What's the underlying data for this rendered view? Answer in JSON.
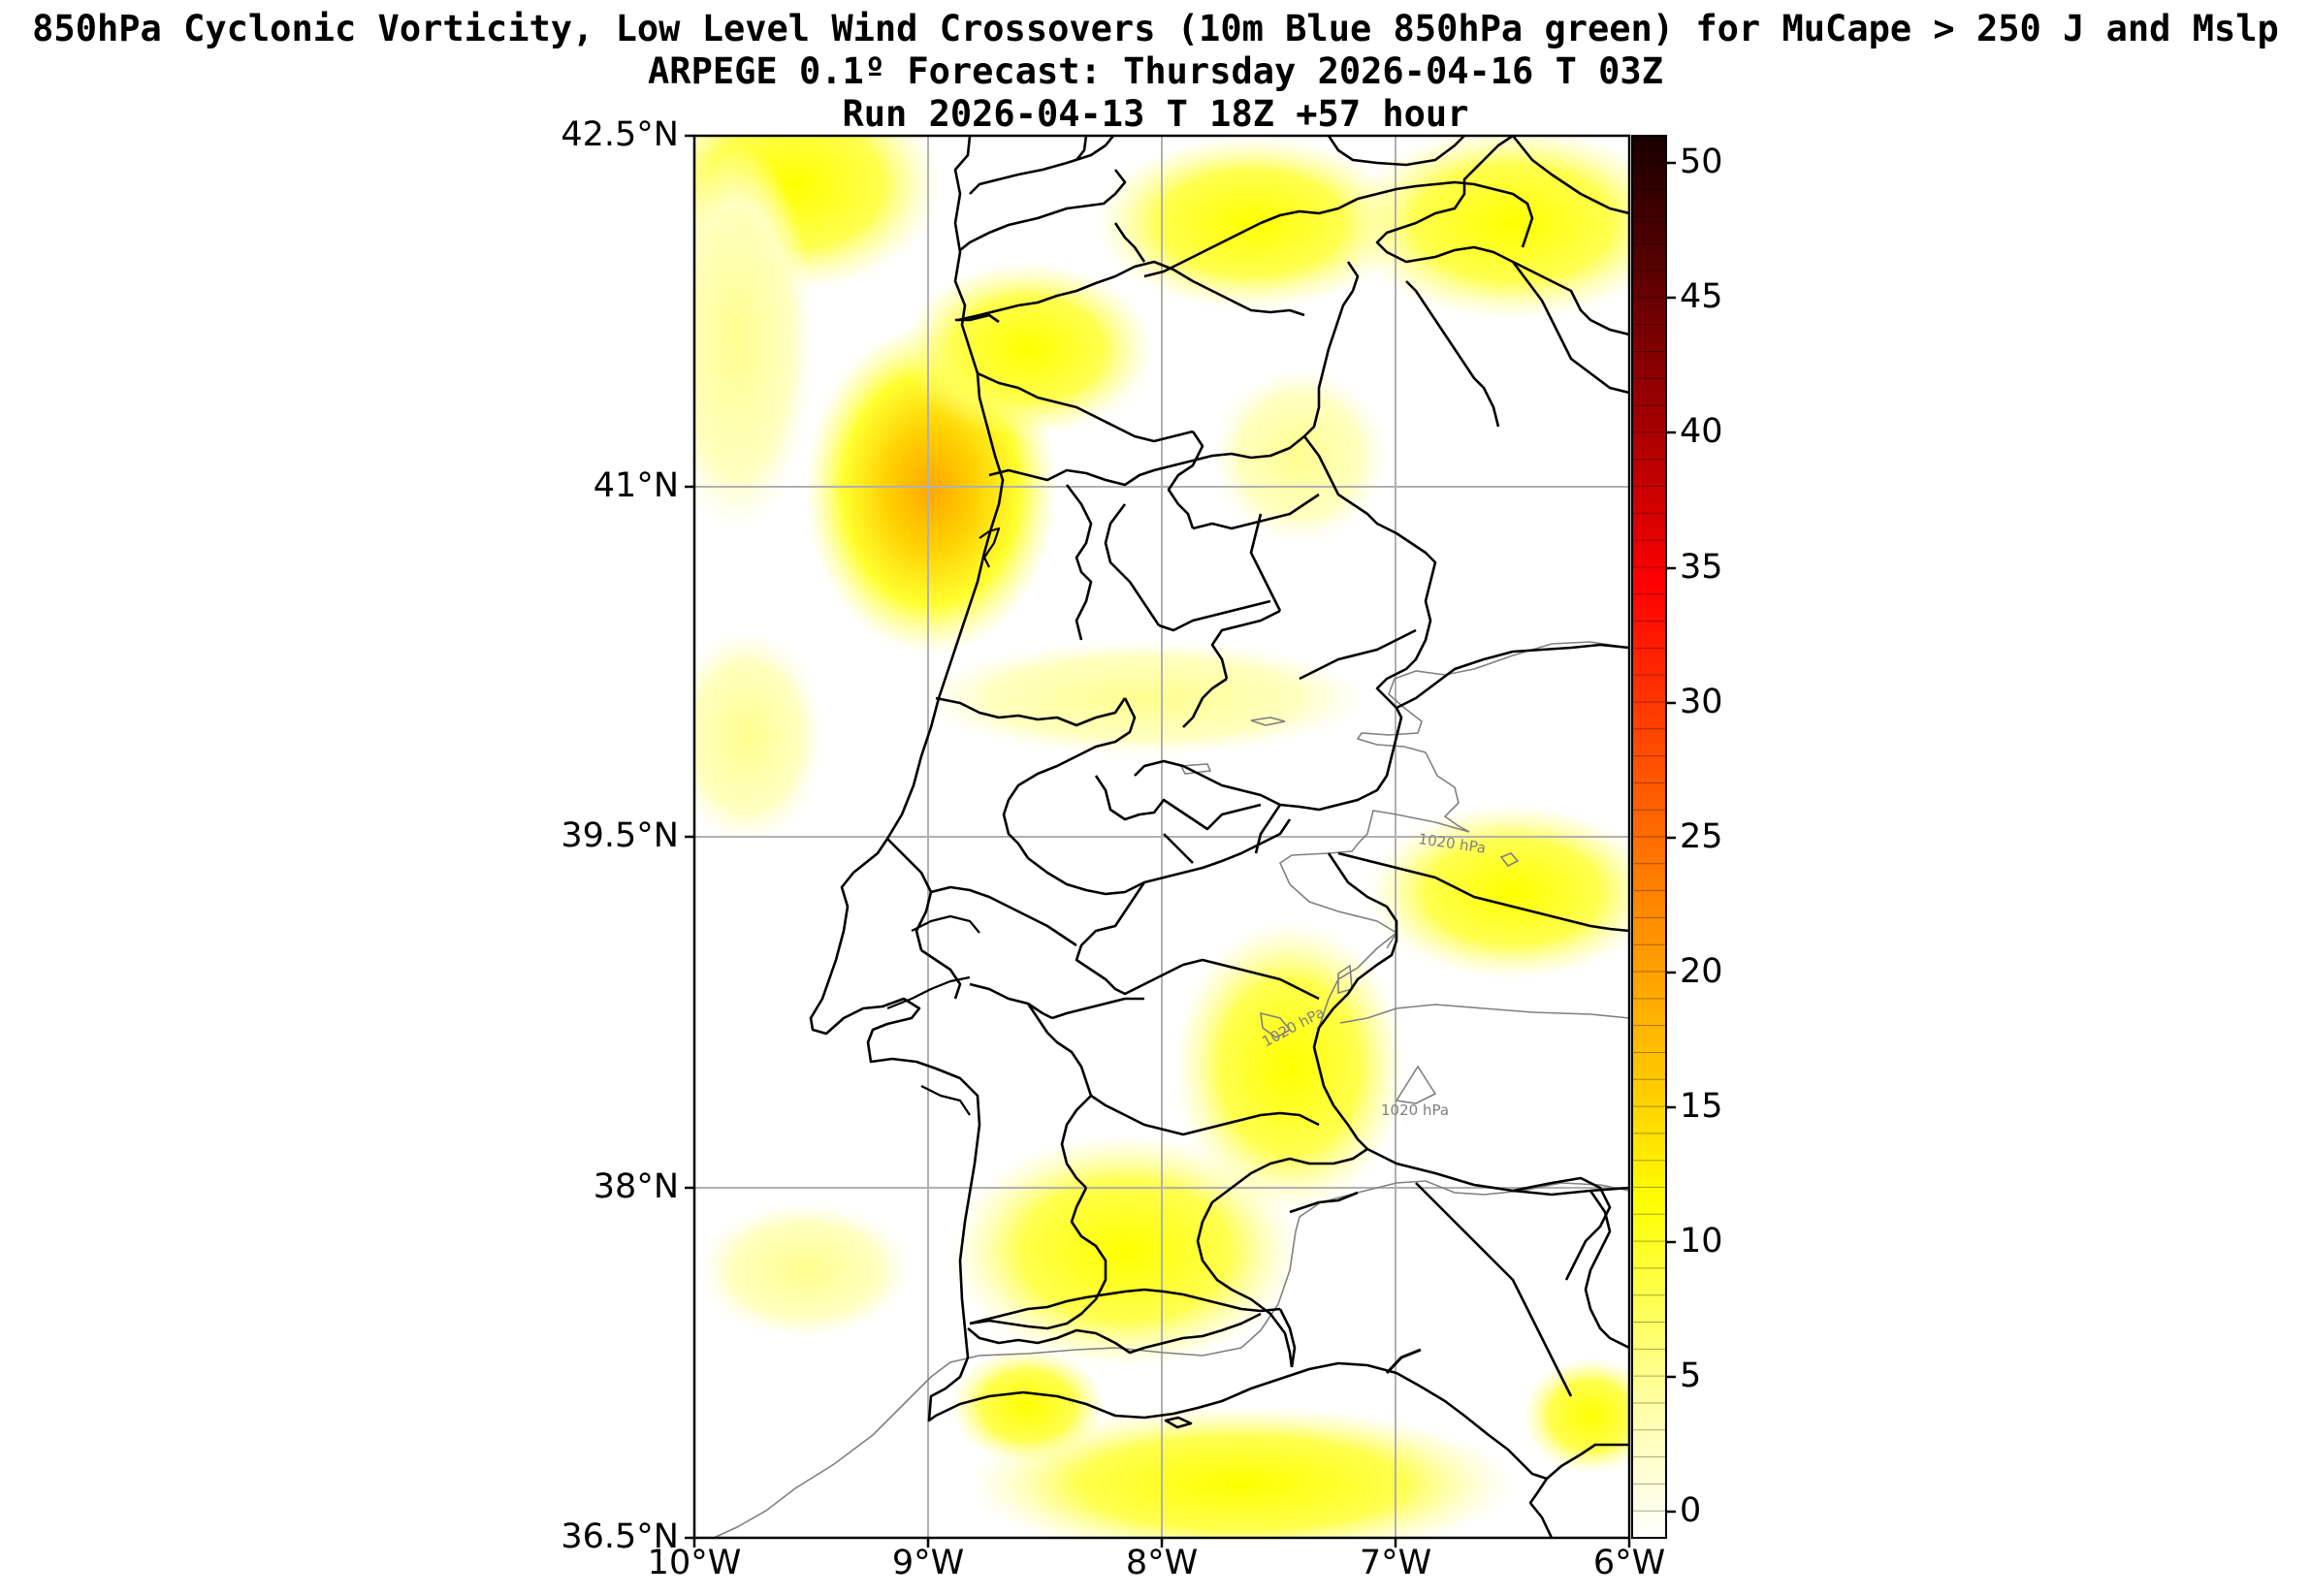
{
  "title": {
    "line1": "850hPa Cyclonic Vorticity, Low Level Wind Crossovers (10m Blue 850hPa green) for MuCape > 250 J and Mslp",
    "line2": "ARPEGE 0.1º Forecast: Thursday 2026-04-16 T 03Z",
    "line3": "Run 2026-04-13 T 18Z +57 hour"
  },
  "map": {
    "lat_labels": [
      "42.5°N",
      "41°N",
      "39.5°N",
      "38°N",
      "36.5°N"
    ],
    "lon_labels": [
      "10°W",
      "9°W",
      "8°W",
      "7°W",
      "6°W"
    ],
    "isobar_labels": [
      "1020 hPa",
      "1020 hPa",
      "1020 hPa"
    ],
    "colors": {
      "field_low": "#ffff80",
      "field_mid": "#ffff00",
      "field_high": "#ffb000",
      "coastline": "#000000",
      "gridline": "#b0b0b0",
      "isobar": "#808080"
    }
  },
  "colorbar": {
    "ticks": [
      "50",
      "45",
      "40",
      "35",
      "30",
      "25",
      "20",
      "15",
      "10",
      "5",
      "0"
    ],
    "colors": [
      "#ffffff",
      "#ffff80",
      "#ffff00",
      "#ffc800",
      "#ff8c00",
      "#ff4000",
      "#ff0000",
      "#b00000",
      "#600000",
      "#200000"
    ]
  }
}
